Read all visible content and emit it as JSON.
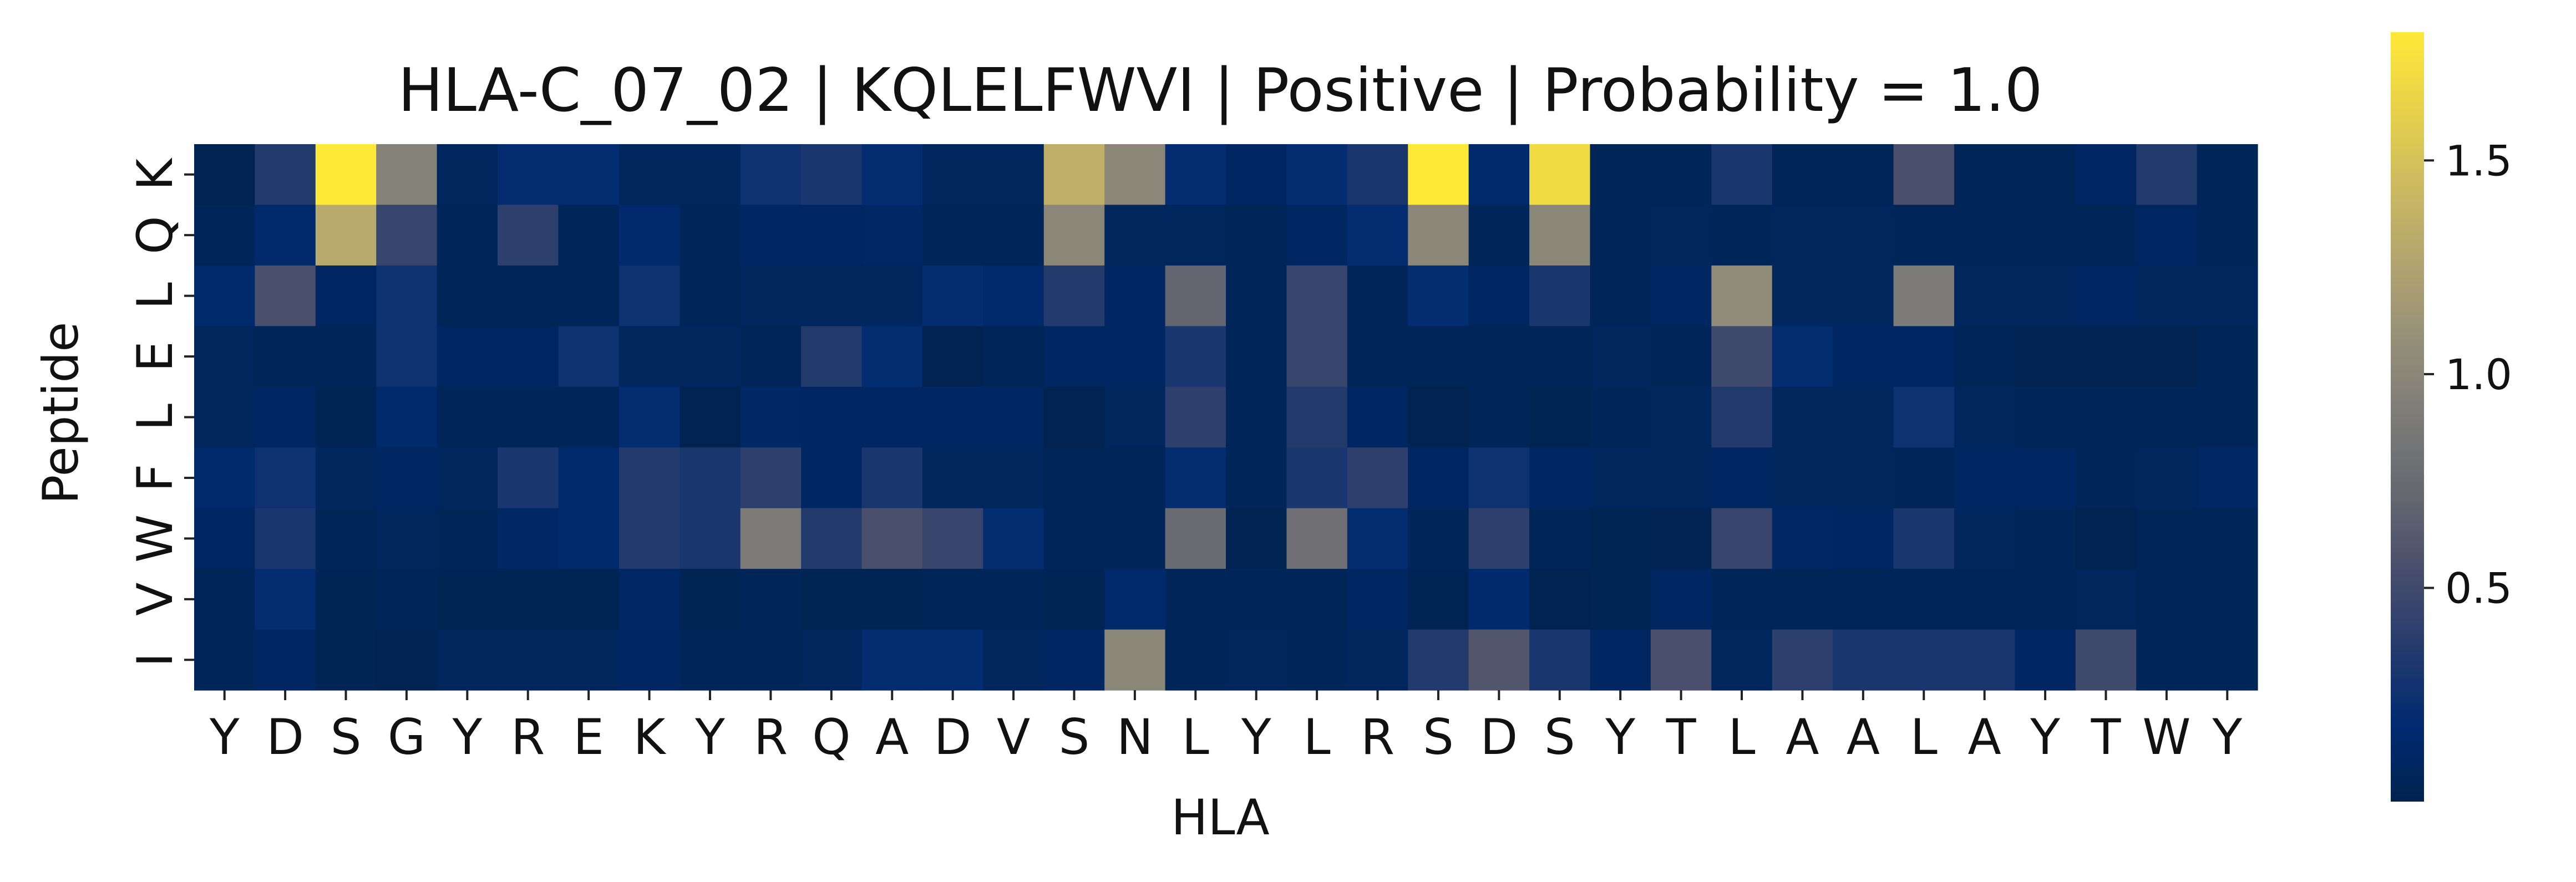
{
  "chart_data": {
    "type": "heatmap",
    "title": "HLA-C_07_02 | KQLELFWVI | Positive | Probability = 1.0",
    "xlabel": "HLA",
    "ylabel": "Peptide",
    "x_categories": [
      "Y",
      "D",
      "S",
      "G",
      "Y",
      "R",
      "E",
      "K",
      "Y",
      "R",
      "Q",
      "A",
      "D",
      "V",
      "S",
      "N",
      "L",
      "Y",
      "L",
      "R",
      "S",
      "D",
      "S",
      "Y",
      "T",
      "L",
      "A",
      "A",
      "L",
      "A",
      "Y",
      "T",
      "W",
      "Y"
    ],
    "y_categories": [
      "K",
      "Q",
      "L",
      "E",
      "L",
      "F",
      "W",
      "V",
      "I"
    ],
    "colormap": "cividis",
    "vmin": 0.0,
    "vmax": 1.8,
    "colorbar_ticks": [
      {
        "value": 0.5,
        "label": "0.5"
      },
      {
        "value": 1.0,
        "label": "1.0"
      },
      {
        "value": 1.5,
        "label": "1.5"
      }
    ],
    "values": [
      [
        0.02,
        0.35,
        1.8,
        0.95,
        0.08,
        0.2,
        0.2,
        0.08,
        0.08,
        0.25,
        0.3,
        0.2,
        0.08,
        0.08,
        1.35,
        1.0,
        0.2,
        0.1,
        0.2,
        0.3,
        1.8,
        0.15,
        1.7,
        0.05,
        0.05,
        0.3,
        0.05,
        0.05,
        0.55,
        0.05,
        0.05,
        0.1,
        0.35,
        0.05
      ],
      [
        0.05,
        0.15,
        1.3,
        0.45,
        0.05,
        0.4,
        0.05,
        0.15,
        0.05,
        0.1,
        0.1,
        0.12,
        0.05,
        0.05,
        1.0,
        0.08,
        0.08,
        0.05,
        0.1,
        0.2,
        1.0,
        0.05,
        1.0,
        0.05,
        0.08,
        0.05,
        0.08,
        0.08,
        0.05,
        0.05,
        0.05,
        0.05,
        0.1,
        0.05
      ],
      [
        0.15,
        0.55,
        0.1,
        0.25,
        0.05,
        0.05,
        0.05,
        0.25,
        0.05,
        0.08,
        0.08,
        0.08,
        0.2,
        0.15,
        0.35,
        0.1,
        0.7,
        0.05,
        0.45,
        0.05,
        0.2,
        0.1,
        0.3,
        0.05,
        0.1,
        1.05,
        0.08,
        0.08,
        0.9,
        0.08,
        0.08,
        0.1,
        0.08,
        0.08
      ],
      [
        0.08,
        0.05,
        0.05,
        0.25,
        0.1,
        0.1,
        0.25,
        0.08,
        0.08,
        0.05,
        0.35,
        0.2,
        0.02,
        0.05,
        0.1,
        0.1,
        0.3,
        0.05,
        0.45,
        0.05,
        0.05,
        0.05,
        0.05,
        0.08,
        0.05,
        0.5,
        0.2,
        0.1,
        0.1,
        0.05,
        0.02,
        0.02,
        0.02,
        0.05
      ],
      [
        0.08,
        0.1,
        0.03,
        0.15,
        0.05,
        0.05,
        0.05,
        0.2,
        0.02,
        0.12,
        0.1,
        0.1,
        0.1,
        0.1,
        0.02,
        0.08,
        0.4,
        0.05,
        0.35,
        0.1,
        0.02,
        0.05,
        0.03,
        0.05,
        0.08,
        0.35,
        0.08,
        0.08,
        0.25,
        0.08,
        0.05,
        0.05,
        0.05,
        0.05
      ],
      [
        0.15,
        0.25,
        0.08,
        0.1,
        0.08,
        0.3,
        0.15,
        0.35,
        0.3,
        0.4,
        0.1,
        0.3,
        0.08,
        0.08,
        0.05,
        0.05,
        0.2,
        0.05,
        0.3,
        0.4,
        0.1,
        0.25,
        0.1,
        0.08,
        0.08,
        0.1,
        0.08,
        0.08,
        0.05,
        0.1,
        0.1,
        0.05,
        0.08,
        0.12
      ],
      [
        0.1,
        0.3,
        0.05,
        0.08,
        0.05,
        0.12,
        0.15,
        0.35,
        0.3,
        0.9,
        0.35,
        0.55,
        0.45,
        0.2,
        0.05,
        0.05,
        0.75,
        0.02,
        0.8,
        0.2,
        0.05,
        0.4,
        0.05,
        0.03,
        0.02,
        0.45,
        0.12,
        0.1,
        0.3,
        0.08,
        0.05,
        0.02,
        0.05,
        0.05
      ],
      [
        0.05,
        0.2,
        0.03,
        0.05,
        0.03,
        0.03,
        0.03,
        0.12,
        0.03,
        0.05,
        0.03,
        0.03,
        0.05,
        0.05,
        0.03,
        0.15,
        0.05,
        0.05,
        0.05,
        0.1,
        0.03,
        0.15,
        0.02,
        0.03,
        0.1,
        0.05,
        0.05,
        0.05,
        0.05,
        0.05,
        0.05,
        0.08,
        0.05,
        0.05
      ],
      [
        0.05,
        0.1,
        0.03,
        0.02,
        0.08,
        0.08,
        0.08,
        0.1,
        0.05,
        0.05,
        0.08,
        0.2,
        0.2,
        0.08,
        0.1,
        1.0,
        0.05,
        0.08,
        0.05,
        0.08,
        0.35,
        0.6,
        0.3,
        0.1,
        0.55,
        0.08,
        0.4,
        0.3,
        0.3,
        0.3,
        0.1,
        0.5,
        0.05,
        0.05
      ]
    ]
  }
}
